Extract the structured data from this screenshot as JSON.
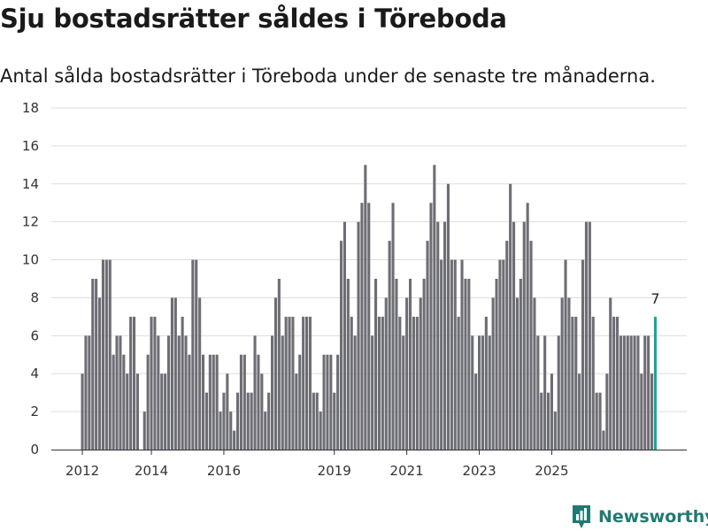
{
  "header": {
    "title": "Sju bostadsrätter såldes i Töreboda",
    "subtitle": "Antal sålda bostadsrätter i Töreboda under de senaste tre månaderna."
  },
  "brand": {
    "name": "Newsworthy"
  },
  "colors": {
    "bar": "#6d6d74",
    "highlight": "#17a89a",
    "grid": "#dddddd",
    "axis": "#333333",
    "brand": "#1f7a72"
  },
  "chart_data": {
    "type": "bar",
    "title": "Sju bostadsrätter såldes i Töreboda",
    "xlabel": "",
    "ylabel": "",
    "ylim": [
      0,
      18
    ],
    "yticks": [
      "0",
      "2",
      "4",
      "6",
      "8",
      "10",
      "12",
      "14",
      "16",
      "18"
    ],
    "xticks": [
      {
        "label": "2012",
        "index": 0
      },
      {
        "label": "2014",
        "index": 20
      },
      {
        "label": "2016",
        "index": 41
      },
      {
        "label": "2019",
        "index": 73
      },
      {
        "label": "2021",
        "index": 94
      },
      {
        "label": "2023",
        "index": 115
      },
      {
        "label": "2025",
        "index": 136
      }
    ],
    "series": [
      {
        "name": "Sålda bostadsrätter",
        "values": [
          4,
          6,
          6,
          9,
          9,
          8,
          10,
          10,
          10,
          5,
          6,
          6,
          5,
          4,
          7,
          7,
          4,
          0,
          2,
          5,
          7,
          7,
          6,
          4,
          4,
          6,
          8,
          8,
          6,
          7,
          6,
          5,
          10,
          10,
          8,
          5,
          3,
          5,
          5,
          5,
          2,
          3,
          4,
          2,
          1,
          3,
          5,
          5,
          3,
          3,
          6,
          5,
          4,
          2,
          3,
          6,
          8,
          9,
          6,
          7,
          7,
          7,
          4,
          5,
          7,
          7,
          7,
          3,
          3,
          2,
          5,
          5,
          5,
          3,
          5,
          11,
          12,
          9,
          7,
          6,
          12,
          13,
          15,
          13,
          6,
          9,
          7,
          7,
          8,
          11,
          13,
          9,
          7,
          6,
          8,
          9,
          7,
          7,
          8,
          9,
          11,
          13,
          15,
          12,
          10,
          12,
          14,
          10,
          10,
          7,
          10,
          9,
          9,
          6,
          4,
          6,
          6,
          7,
          6,
          8,
          9,
          10,
          10,
          11,
          14,
          12,
          8,
          9,
          12,
          13,
          11,
          8,
          6,
          3,
          6,
          3,
          4,
          2,
          6,
          8,
          10,
          8,
          7,
          7,
          4,
          10,
          12,
          12,
          7,
          3,
          3,
          1,
          4,
          8,
          7,
          7,
          6,
          6,
          6,
          6,
          6,
          6,
          4,
          6,
          6,
          4,
          7
        ]
      }
    ],
    "highlight": {
      "index": 166,
      "label": "7"
    }
  }
}
